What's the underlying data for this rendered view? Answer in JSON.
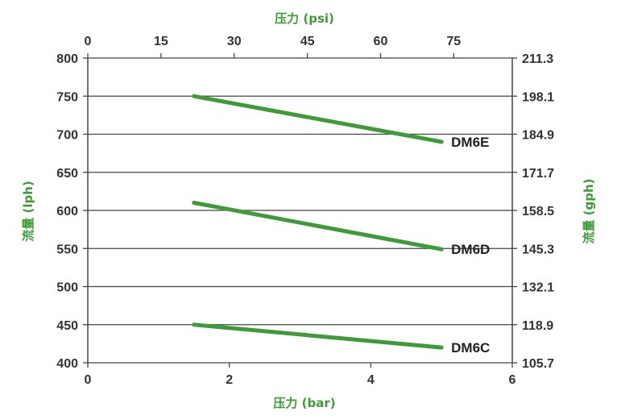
{
  "chart_data": {
    "type": "line",
    "x_bottom": {
      "label": "压力 (bar)",
      "range": [
        0,
        6
      ],
      "ticks": [
        "0",
        "2",
        "4",
        "6"
      ]
    },
    "x_top": {
      "label": "压力 (psi)",
      "range": [
        0,
        87
      ],
      "ticks": [
        "0",
        "15",
        "30",
        "45",
        "60",
        "75"
      ]
    },
    "y_left": {
      "label": "流量 (lph)",
      "range": [
        400,
        800
      ],
      "ticks": [
        "400",
        "450",
        "500",
        "550",
        "600",
        "650",
        "700",
        "750",
        "800"
      ]
    },
    "y_right": {
      "label": "流量 (gph)",
      "ticks": [
        "105.7",
        "118.9",
        "132.1",
        "145.3",
        "158.5",
        "171.7",
        "184.9",
        "198.1",
        "211.3"
      ]
    },
    "grid": true,
    "series": [
      {
        "name": "DM6E",
        "x": [
          1.5,
          5.0
        ],
        "y": [
          750,
          690
        ]
      },
      {
        "name": "DM6D",
        "x": [
          1.5,
          5.0
        ],
        "y": [
          610,
          549
        ]
      },
      {
        "name": "DM6C",
        "x": [
          1.5,
          5.0
        ],
        "y": [
          450,
          420
        ]
      }
    ],
    "line_color": "#3f9a3a",
    "title_color": "#3f9a3a"
  }
}
